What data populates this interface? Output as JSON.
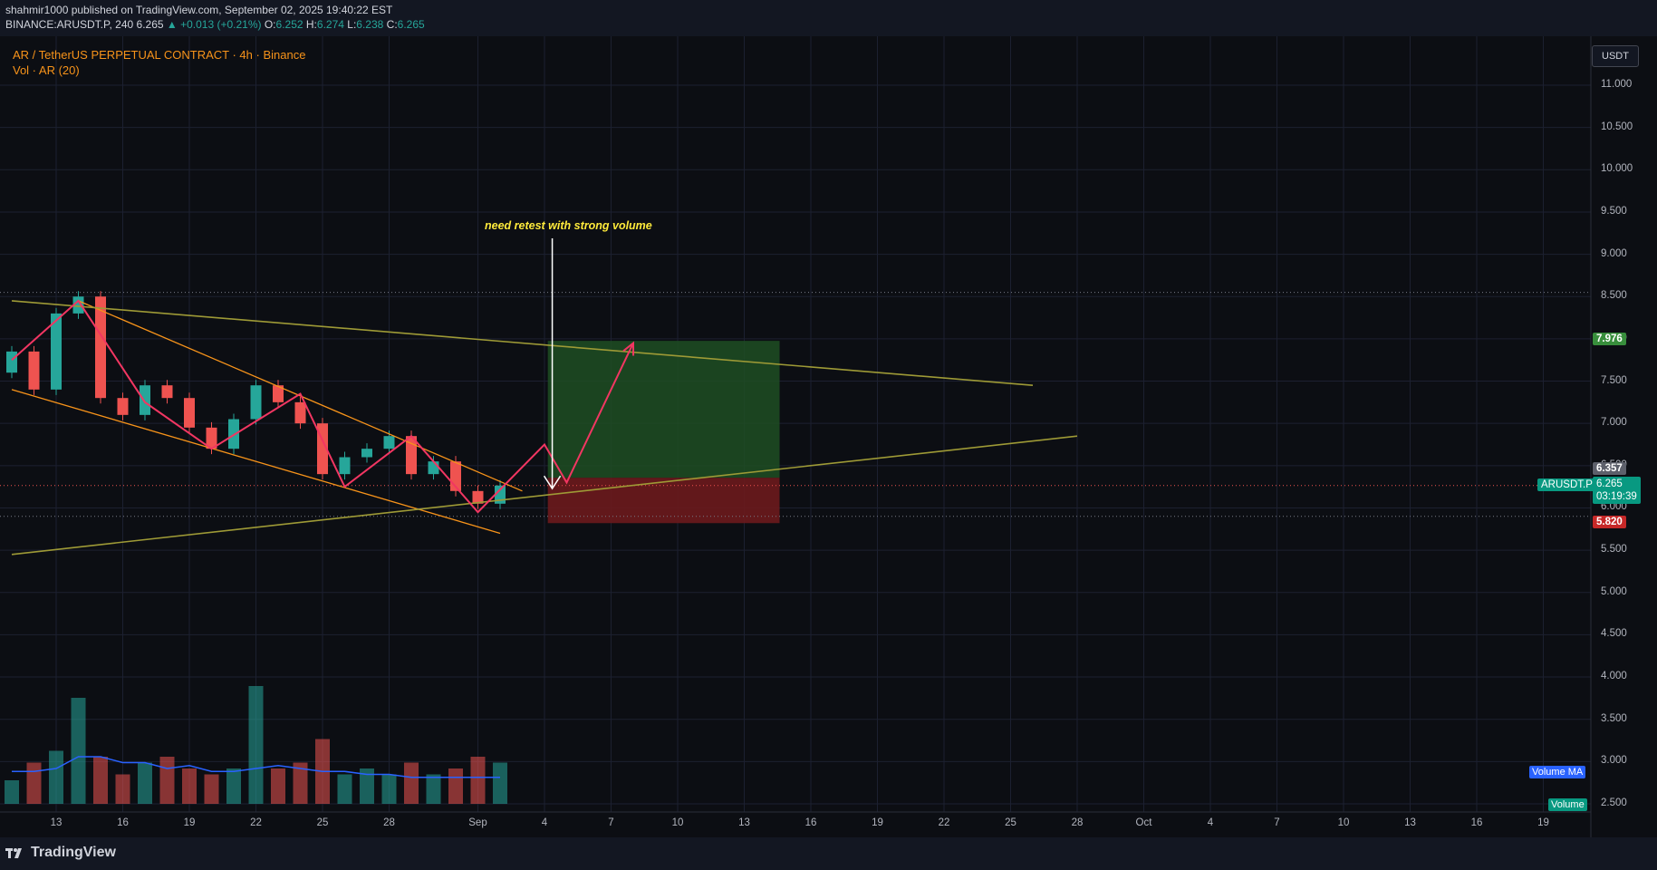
{
  "header": {
    "published": "shahmir1000 published on TradingView.com, September 02, 2025 19:40:22 EST",
    "symbol_line": "BINANCE:ARUSDT.P, 240",
    "last": "6.265",
    "change": "▲ +0.013 (+0.21%)",
    "open_label": "O:",
    "open": "6.252",
    "high_label": "H:",
    "high": "6.274",
    "low_label": "L:",
    "low": "6.238",
    "close_label": "C:",
    "close": "6.265"
  },
  "legend": {
    "title": "AR / TetherUS PERPETUAL CONTRACT · 4h · Binance",
    "indicator": "Vol · AR (20)"
  },
  "axis": {
    "currency": "USDT",
    "y_ticks": [
      "11.000",
      "10.500",
      "10.000",
      "9.500",
      "9.000",
      "8.500",
      "8.000",
      "7.500",
      "7.000",
      "6.500",
      "6.000",
      "5.500",
      "5.000",
      "4.500",
      "4.000",
      "3.500",
      "3.000",
      "2.500"
    ],
    "x_ticks": [
      "13",
      "16",
      "19",
      "22",
      "25",
      "28",
      "Sep",
      "4",
      "7",
      "10",
      "13",
      "16",
      "19",
      "22",
      "25",
      "28",
      "Oct",
      "4",
      "7",
      "10",
      "13",
      "16",
      "19"
    ]
  },
  "annotation": "need retest with strong volume",
  "price_labels": {
    "target": "7.976",
    "entry": "6.357",
    "stop": "5.820",
    "symbol": "ARUSDT.P",
    "current": "6.265",
    "countdown": "03:19:39"
  },
  "badges": {
    "volume_ma": "Volume MA",
    "volume": "Volume"
  },
  "brand": "TradingView",
  "colors": {
    "bull": "#26a69a",
    "bear": "#ef5350",
    "pattern": "#f7931a",
    "trendline": "#9e9a36",
    "zigzag": "#f23662",
    "target_zone": "#1f4d23",
    "stop_zone": "#6b1a1d",
    "annotation": "#ffeb3b"
  },
  "chart_data": {
    "type": "candlestick",
    "timeframe": "4h",
    "y_scale": "linear",
    "ylim": [
      2.5,
      11.0
    ],
    "grid": true,
    "candles": [
      {
        "date": "Aug 11",
        "open": 7.6,
        "close": 7.85
      },
      {
        "date": "Aug 12",
        "open": 7.85,
        "close": 7.4
      },
      {
        "date": "Aug 13",
        "open": 7.4,
        "close": 8.3
      },
      {
        "date": "Aug 14",
        "open": 8.3,
        "close": 8.5
      },
      {
        "date": "Aug 15",
        "open": 8.5,
        "close": 7.3
      },
      {
        "date": "Aug 16",
        "open": 7.3,
        "close": 7.1
      },
      {
        "date": "Aug 17",
        "open": 7.1,
        "close": 7.45
      },
      {
        "date": "Aug 18",
        "open": 7.45,
        "close": 7.3
      },
      {
        "date": "Aug 19",
        "open": 7.3,
        "close": 6.95
      },
      {
        "date": "Aug 20",
        "open": 6.95,
        "close": 6.7
      },
      {
        "date": "Aug 21",
        "open": 6.7,
        "close": 7.05
      },
      {
        "date": "Aug 22",
        "open": 7.05,
        "close": 7.45
      },
      {
        "date": "Aug 23",
        "open": 7.45,
        "close": 7.25
      },
      {
        "date": "Aug 24",
        "open": 7.25,
        "close": 7.0
      },
      {
        "date": "Aug 25",
        "open": 7.0,
        "close": 6.4
      },
      {
        "date": "Aug 26",
        "open": 6.4,
        "close": 6.6
      },
      {
        "date": "Aug 27",
        "open": 6.6,
        "close": 6.7
      },
      {
        "date": "Aug 28",
        "open": 6.7,
        "close": 6.85
      },
      {
        "date": "Aug 29",
        "open": 6.85,
        "close": 6.4
      },
      {
        "date": "Aug 30",
        "open": 6.4,
        "close": 6.55
      },
      {
        "date": "Aug 31",
        "open": 6.55,
        "close": 6.2
      },
      {
        "date": "Sep 1",
        "open": 6.2,
        "close": 6.05
      },
      {
        "date": "Sep 2",
        "open": 6.05,
        "close": 6.265
      }
    ],
    "volume": [
      2.9,
      3.2,
      3.4,
      4.3,
      3.3,
      3.0,
      3.2,
      3.3,
      3.1,
      3.0,
      3.1,
      4.5,
      3.1,
      3.2,
      3.6,
      3.0,
      3.1,
      3.0,
      3.2,
      3.0,
      3.1,
      3.3,
      3.2
    ],
    "volume_ma": [
      3.05,
      3.05,
      3.1,
      3.3,
      3.3,
      3.2,
      3.2,
      3.1,
      3.15,
      3.05,
      3.05,
      3.1,
      3.15,
      3.1,
      3.05,
      3.05,
      3.0,
      3.0,
      2.95,
      2.95,
      2.95,
      2.95,
      2.95
    ],
    "drawings": {
      "falling_channel": {
        "upper": [
          [
            "Aug 14",
            8.45
          ],
          [
            "Sep 3",
            6.2
          ]
        ],
        "lower": [
          [
            "Aug 11",
            7.4
          ],
          [
            "Sep 2",
            5.7
          ]
        ]
      },
      "resistance_line": [
        [
          "Aug 11",
          8.45
        ],
        [
          "Sep 26",
          7.45
        ]
      ],
      "support_line": [
        [
          "Aug 11",
          5.45
        ],
        [
          "Sep 28",
          6.85
        ]
      ],
      "position": {
        "entry": 6.357,
        "target": 7.976,
        "stop": 5.82,
        "from": "Sep 4",
        "to": "Sep 15"
      },
      "zigzag": [
        [
          "Aug 11",
          7.75
        ],
        [
          "Aug 14",
          8.45
        ],
        [
          "Aug 17",
          7.25
        ],
        [
          "Aug 20",
          6.7
        ],
        [
          "Aug 24",
          7.35
        ],
        [
          "Aug 26",
          6.25
        ],
        [
          "Aug 29",
          6.85
        ],
        [
          "Sep 1",
          5.95
        ],
        [
          "Sep 4",
          6.75
        ],
        [
          "Sep 5",
          6.3
        ],
        [
          "Sep 8",
          7.95
        ]
      ],
      "h_lines": [
        8.55,
        6.265,
        5.9
      ]
    }
  }
}
